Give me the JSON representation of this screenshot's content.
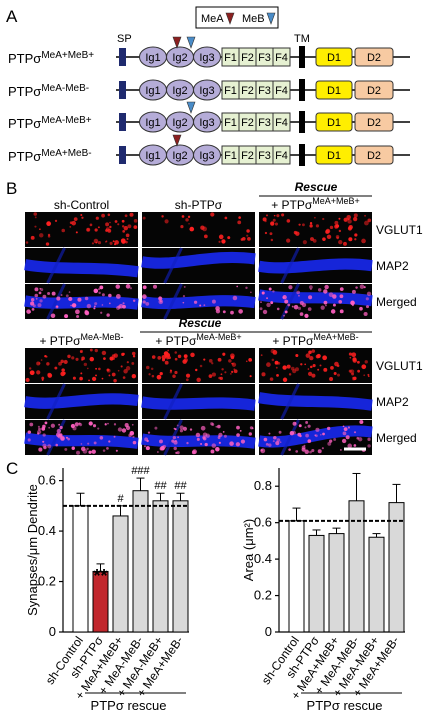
{
  "panel_labels": [
    "A",
    "B",
    "C"
  ],
  "panel_a": {
    "legend": [
      "MeA",
      "MeB"
    ],
    "sp_label": "SP",
    "tm_label": "TM",
    "domains": [
      "Ig1",
      "Ig2",
      "Ig3",
      "F1",
      "F2",
      "F3",
      "F4",
      "D1",
      "D2"
    ],
    "mea_color": "#8b2020",
    "meb_color": "#4a8cc8",
    "rows": [
      {
        "base": "PTPσ",
        "sup": "MeA+MeB+",
        "mea": true,
        "meb": true
      },
      {
        "base": "PTPσ",
        "sup": "MeA-MeB-",
        "mea": false,
        "meb": false
      },
      {
        "base": "PTPσ",
        "sup": "MeA-MeB+",
        "mea": false,
        "meb": true
      },
      {
        "base": "PTPσ",
        "sup": "MeA+MeB-",
        "mea": true,
        "meb": false
      }
    ]
  },
  "panel_b": {
    "rescue": "Rescue",
    "top_columns": [
      {
        "text": "sh-Control"
      },
      {
        "text": "sh-PTPσ"
      },
      {
        "prefix": "+ ",
        "base": "PTPσ",
        "sup": "MeA+MeB+"
      }
    ],
    "bottom_columns": [
      {
        "prefix": "+ ",
        "base": "PTPσ",
        "sup": "MeA-MeB-"
      },
      {
        "prefix": "+ ",
        "base": "PTPσ",
        "sup": "MeA-MeB+"
      },
      {
        "prefix": "+ ",
        "base": "PTPσ",
        "sup": "MeA+MeB-"
      }
    ],
    "channels": [
      "VGLUT1",
      "MAP2",
      "Merged"
    ]
  },
  "chart_data": [
    {
      "type": "bar",
      "ylabel": "Synapses/μm Dendrite",
      "categories": [
        "sh-Control",
        "sh-PTPσ",
        "+ MeA+MeB+",
        "+ MeA-MeB-",
        "+ MeA-MeB+",
        "+ MeA+MeB-"
      ],
      "values": [
        0.5,
        0.24,
        0.46,
        0.56,
        0.52,
        0.52
      ],
      "errors": [
        0.05,
        0.03,
        0.04,
        0.05,
        0.03,
        0.03
      ],
      "colors": [
        "#ffffff",
        "#c1272d",
        "#d9d9d9",
        "#d9d9d9",
        "#d9d9d9",
        "#d9d9d9"
      ],
      "reference_line": 0.5,
      "annotations": [
        {
          "index": 1,
          "text": "**"
        },
        {
          "index": 2,
          "text": "#"
        },
        {
          "index": 3,
          "text": "###"
        },
        {
          "index": 4,
          "text": "##"
        },
        {
          "index": 5,
          "text": "##"
        }
      ],
      "group_label": "PTPσ rescue",
      "group_start": 2,
      "ylim": [
        0,
        0.65
      ],
      "yticks": [
        0,
        0.2,
        0.4,
        0.6
      ]
    },
    {
      "type": "bar",
      "ylabel": "Area (μm²)",
      "categories": [
        "sh-Control",
        "sh-PTPσ",
        "+ MeA+MeB+",
        "+ MeA-MeB-",
        "+ MeA-MeB+",
        "+ MeA+MeB-"
      ],
      "values": [
        0.61,
        0.53,
        0.54,
        0.72,
        0.52,
        0.71
      ],
      "errors": [
        0.07,
        0.03,
        0.03,
        0.15,
        0.02,
        0.1
      ],
      "colors": [
        "#ffffff",
        "#d9d9d9",
        "#d9d9d9",
        "#d9d9d9",
        "#d9d9d9",
        "#d9d9d9"
      ],
      "reference_line": 0.61,
      "group_label": "PTPσ rescue",
      "group_start": 2,
      "ylim": [
        0,
        0.9
      ],
      "yticks": [
        0,
        0.2,
        0.4,
        0.6,
        0.8
      ]
    }
  ]
}
